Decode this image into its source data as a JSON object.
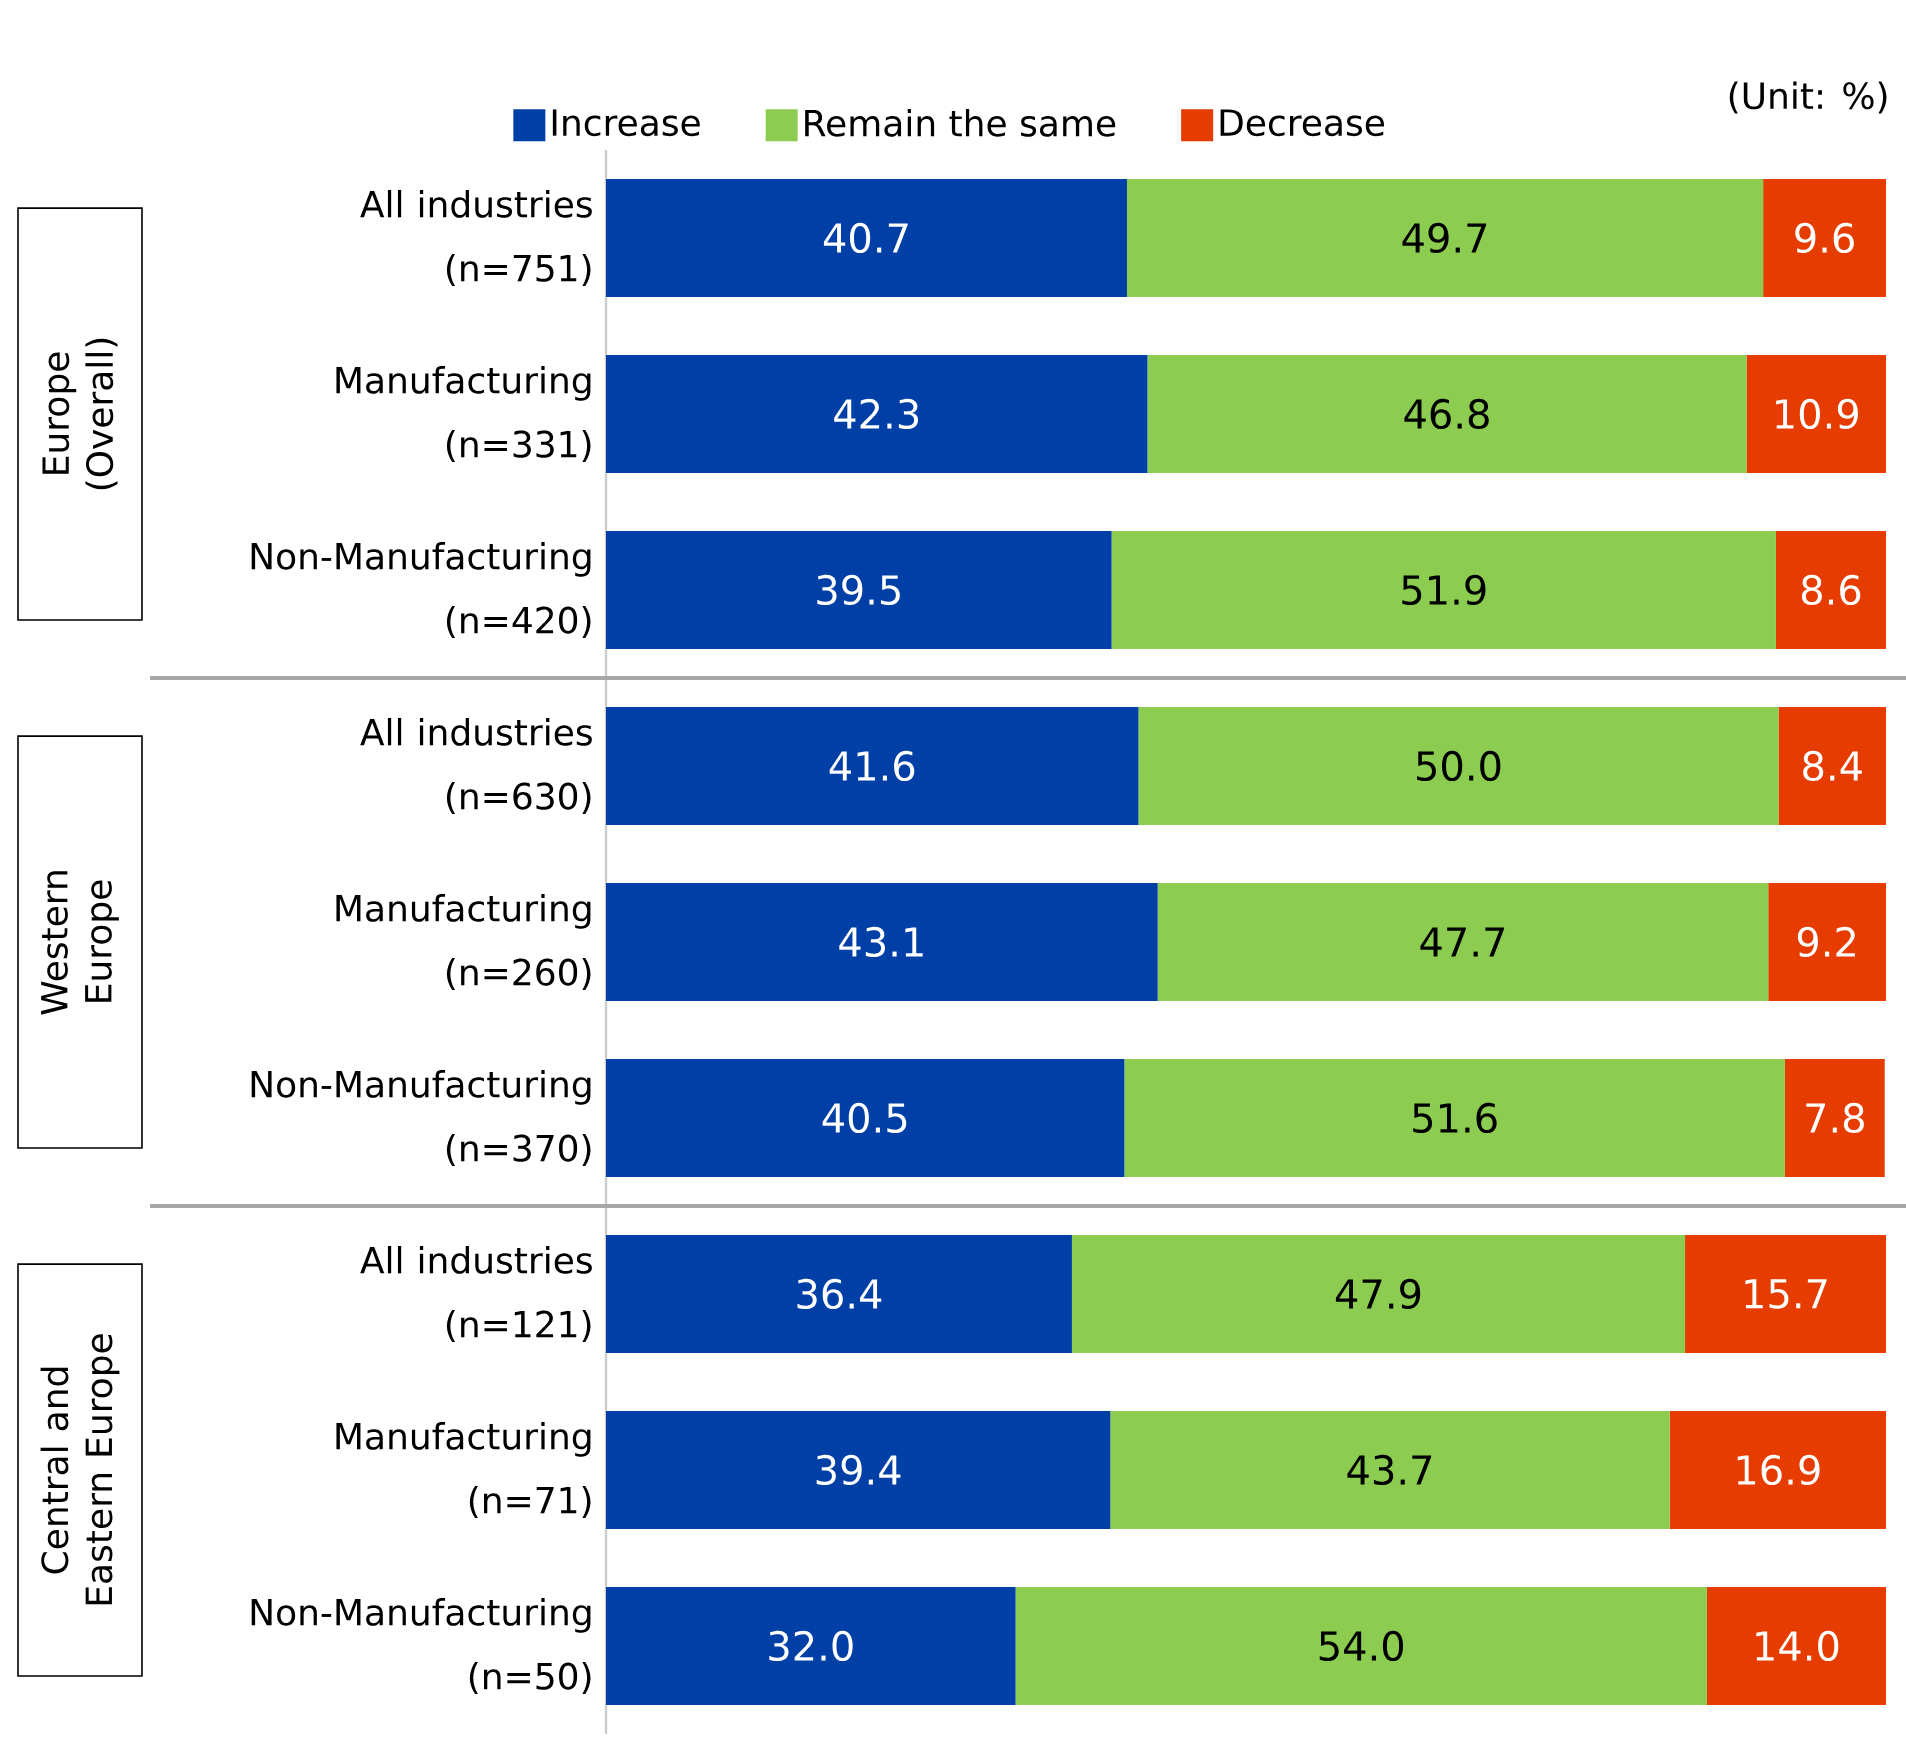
{
  "chart_data": {
    "type": "bar",
    "orientation": "horizontal",
    "stacked": true,
    "legend": "top",
    "xlim": [
      0,
      100
    ],
    "tick_labels": "y",
    "categories": [
      "All industries (n=751)",
      "Manufacturing (n=331)",
      "Non-Manufacturing (n=420)",
      "All industries (n=630)",
      "Manufacturing (n=260)",
      "Non-Manufacturing (n=370)",
      "All industries (n=121)",
      "Manufacturing (n=71)",
      "Non-Manufacturing (n=50)"
    ],
    "series": [
      {
        "name": "Increase",
        "color": "#003fa5",
        "values": [
          40.7,
          42.3,
          39.5,
          41.6,
          43.1,
          40.5,
          36.4,
          39.4,
          32.0
        ],
        "value_labels": [
          "40.7",
          "42.3",
          "39.5",
          "41.6",
          "43.1",
          "40.5",
          "36.4",
          "39.4",
          "32.0"
        ]
      },
      {
        "name": "Remain the same",
        "color": "#8ccc50",
        "values": [
          49.7,
          46.8,
          51.9,
          50.0,
          47.7,
          51.6,
          47.9,
          43.7,
          54.0
        ],
        "value_labels": [
          "49.7",
          "46.8",
          "51.9",
          "50.0",
          "47.7",
          "51.6",
          "47.9",
          "43.7",
          "54.0"
        ]
      },
      {
        "name": "Decrease",
        "color": "#e63c00",
        "values": [
          9.6,
          10.9,
          8.6,
          8.4,
          9.2,
          7.8,
          15.7,
          16.9,
          14.0
        ],
        "value_labels": [
          "9.6",
          "10.9",
          "8.6",
          "8.4",
          "9.2",
          "7.8",
          "15.7",
          "16.9",
          "14.0"
        ]
      }
    ],
    "annotations": [
      "Europe (Overall)",
      "Western Europe",
      "Central and Eastern Europe",
      "(Unit: %)"
    ]
  }
}
